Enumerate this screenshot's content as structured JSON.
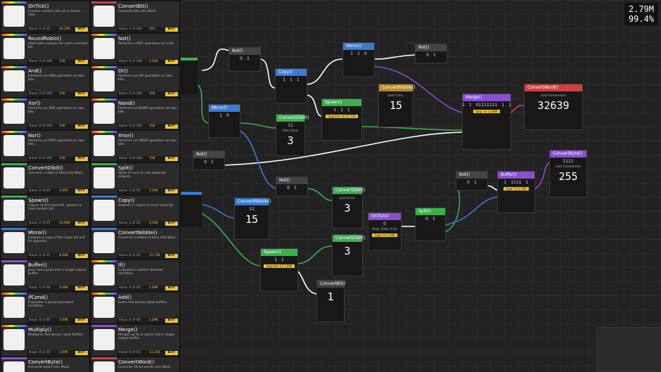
{
  "sidebar": {
    "items": [
      {
        "name": "OnTick()",
        "desc": "Creates random bits at a certain rate.",
        "have": "Have: 2 of 25",
        "price": "40.20K",
        "buy": "BUY",
        "color": "rainbow"
      },
      {
        "name": "ConvertBit()",
        "desc": "Converts bits into Work.",
        "have": "Have: 1 of 100",
        "price": "250",
        "buy": "BUY",
        "color": "#d04040"
      },
      {
        "name": "RoundRobin()",
        "desc": "Alternates outputs for each received bit.",
        "have": "Have: 0 of 100",
        "price": "15K",
        "buy": "BUY",
        "color": "rainbow"
      },
      {
        "name": "Not()",
        "desc": "Performs a NOT operation on a bit.",
        "have": "Have: 6 of 100",
        "price": "1.64K",
        "buy": "BUY",
        "color": "rainbow"
      },
      {
        "name": "And()",
        "desc": "Performs an AND operation on two bits.",
        "have": "Have: 0 of 100",
        "price": "15K",
        "buy": "BUY",
        "color": "rainbow"
      },
      {
        "name": "Or()",
        "desc": "Performs an OR operation on two bits.",
        "have": "Have: 0 of 100",
        "price": "15K",
        "buy": "BUY",
        "color": "rainbow"
      },
      {
        "name": "Xor()",
        "desc": "Performs an XOR operation on two bits.",
        "have": "Have: 0 of 100",
        "price": "15K",
        "buy": "BUY",
        "color": "rainbow"
      },
      {
        "name": "Nand()",
        "desc": "Performs an NAND operation on two bits.",
        "have": "Have: 0 of 100",
        "price": "15K",
        "buy": "BUY",
        "color": "rainbow"
      },
      {
        "name": "Nor()",
        "desc": "Performs an NOR operation on two bits.",
        "have": "Have: 0 of 100",
        "price": "15K",
        "buy": "BUY",
        "color": "rainbow"
      },
      {
        "name": "Xnor()",
        "desc": "Performs an XNOR operation on two bits.",
        "have": "Have: 0 of 100",
        "price": "15K",
        "buy": "BUY",
        "color": "rainbow"
      },
      {
        "name": "ConvertDibit()",
        "desc": "Converts a dibit (2 bits) into Work.",
        "have": "Have: 2 of 50",
        "price": "1.66K",
        "buy": "BUY",
        "color": "#3ab04a"
      },
      {
        "name": "Split()",
        "desc": "Splits 0s and 1s into separate outputs.",
        "have": "Have: 1 of 50",
        "price": "1.66K",
        "buy": "BUY",
        "color": "#3ab04a"
      },
      {
        "name": "Spawn()",
        "desc": "Copies of the input bit, spawns a new random bit",
        "have": "Have: 2 of 25",
        "price": "16.88K",
        "buy": "BUY",
        "color": "#3ab04a"
      },
      {
        "name": "Copy()",
        "desc": "Outputs 2 copies of each input bit.",
        "have": "Have: 1 of 25",
        "price": "6.00K",
        "buy": "BUY",
        "color": "#3a7bd5"
      },
      {
        "name": "Mirror()",
        "desc": "Outputs a copy of the input bit and its opposite.",
        "have": "Have: 2 of 25",
        "price": "8.00K",
        "buy": "BUY",
        "color": "#3a7bd5"
      },
      {
        "name": "ConvertNibble()",
        "desc": "Converts a nibble (4 bits) into Work.",
        "have": "Have: 2 of 25",
        "price": "31.72K",
        "buy": "BUY",
        "color": "#3a7bd5"
      },
      {
        "name": "Buffer()",
        "desc": "Joins two inputs into a single output buffer.",
        "have": "Have: 1 of 50",
        "price": "9.38K",
        "buy": "BUY",
        "color": "#8a4fd0"
      },
      {
        "name": "If()",
        "desc": "Evaluates a built-in boolean condition.",
        "have": "Have: 0 of 50",
        "price": "1.69K",
        "buy": "BUY",
        "color": "rainbow"
      },
      {
        "name": "IfCond()",
        "desc": "Evaluates a player-provided condition.",
        "have": "Have: 0 of 50",
        "price": "1.69K",
        "buy": "BUY",
        "color": "rainbow"
      },
      {
        "name": "Add()",
        "desc": "Sums two binary input buffers.",
        "have": "Have: 0 of 50",
        "price": "1.69K",
        "buy": "BUY",
        "color": "rainbow"
      },
      {
        "name": "Multiply()",
        "desc": "Multiplies two binary input buffers.",
        "have": "Have: 0 of 50",
        "price": "1.69K",
        "buy": "BUY",
        "color": "rainbow"
      },
      {
        "name": "Merge()",
        "desc": "Merges up to 4 inputs into a single output buffer.",
        "have": "Have: 0 of 50",
        "price": "11.25K",
        "buy": "BUY",
        "color": "#8a4fd0"
      },
      {
        "name": "ConvertByte()",
        "desc": "Converts bytes into Work.",
        "color": "#8a4fd0"
      },
      {
        "name": "ConvertWord()",
        "desc": "Converts 16-bit words into Work.",
        "color": "#d04040"
      }
    ]
  },
  "stats": {
    "work": "2.79M",
    "efficiency": "99.4%"
  },
  "nodes": [
    {
      "title": "Not()",
      "color": "#444",
      "ports": [
        "0",
        "1"
      ]
    },
    {
      "title": "Mirror()",
      "color": "#3a7bd5",
      "ports": [
        "1",
        "1",
        "0"
      ]
    },
    {
      "title": "Not()",
      "color": "#444",
      "ports": [
        "0",
        "1"
      ]
    },
    {
      "title": "Copy()",
      "color": "#3a7bd5",
      "ports": [
        "1",
        "1",
        "1"
      ]
    },
    {
      "title": "ConvertNibble()",
      "color": "#b8892a",
      "label": "Last Conv.",
      "value": "15"
    },
    {
      "title": "Spawn()",
      "color": "#3ab04a",
      "ports": [
        "1",
        "1",
        "1"
      ],
      "upgrade": "Upgrade: lvl 21.73K"
    },
    {
      "title": "Merge()",
      "color": "#8a4fd0",
      "ports": [
        "1",
        "1",
        "01111111",
        "1",
        "1"
      ],
      "upgrade": "Upgr. lvl 13.80K"
    },
    {
      "title": "ConvertWord()",
      "color": "#d04040",
      "label": "Last Conversion",
      "value": "32639"
    },
    {
      "title": "Mirror()",
      "color": "#3a7bd5",
      "ports": [
        "1",
        "0"
      ]
    },
    {
      "title": "ConvertDibit()",
      "color": "#3ab04a",
      "ports": [
        "11"
      ],
      "label": "Last Conv.",
      "value": "3"
    },
    {
      "title": "Not()",
      "color": "#444",
      "ports": [
        "0",
        "1"
      ]
    },
    {
      "title": "ConvertByte()",
      "color": "#8a4fd0",
      "ports": [
        "1111"
      ],
      "label": "Last Conversion",
      "value": "255"
    },
    {
      "title": "Not()",
      "color": "#444",
      "ports": [
        "0",
        "1"
      ]
    },
    {
      "title": "Not()",
      "color": "#444",
      "ports": [
        "0",
        "1"
      ]
    },
    {
      "title": "Buffer()",
      "color": "#8a4fd0",
      "ports": [
        "1",
        "1111",
        "1"
      ],
      "upgrade": "Upgr. lvl 1.50K"
    },
    {
      "title": "ConvertNibble()",
      "color": "#3a7bd5",
      "ports": [
        "11"
      ],
      "value": "15"
    },
    {
      "title": "ConvertDibit()",
      "color": "#3ab04a",
      "label": "Last Conv.",
      "value": "3"
    },
    {
      "title": "OnTick()",
      "color": "#8a4fd0",
      "ports": [
        "0"
      ],
      "label": "Prob. Rate: 0.4s",
      "upgrade": "Upgr. lvl 1.60K"
    },
    {
      "title": "Split()",
      "color": "#3ab04a",
      "ports": [
        "0",
        "1"
      ]
    },
    {
      "title": "Spawn()",
      "color": "#3ab04a",
      "ports": [
        "1",
        "1"
      ],
      "upgrade": "Upgrade: lvl 1.69K"
    },
    {
      "title": "ConvertDibit()",
      "color": "#3ab04a",
      "value": "3"
    },
    {
      "title": "ConvertBit()",
      "color": "#444",
      "value": "1"
    }
  ]
}
